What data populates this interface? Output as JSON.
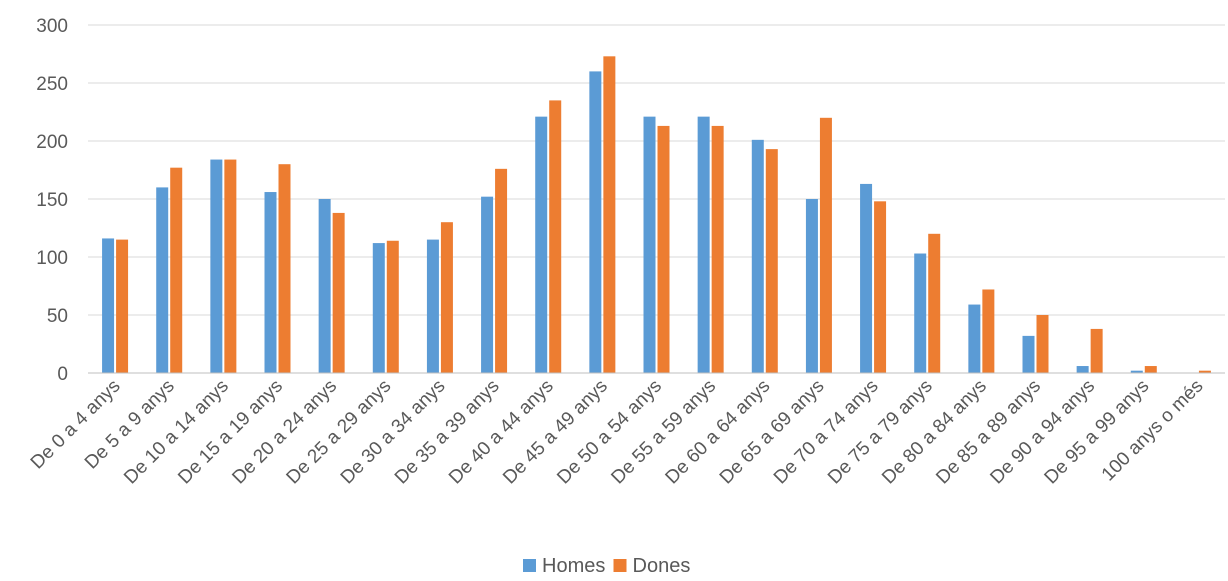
{
  "chart_data": {
    "type": "bar",
    "categories": [
      "De 0 a 4 anys",
      "De 5 a 9 anys",
      "De 10 a 14 anys",
      "De 15 a 19 anys",
      "De 20 a 24 anys",
      "De 25 a 29 anys",
      "De 30 a 34 anys",
      "De 35 a 39 anys",
      "De 40 a 44 anys",
      "De 45 a 49 anys",
      "De 50 a 54 anys",
      "De 55 a 59 anys",
      "De 60 a 64 anys",
      "De 65 a 69 anys",
      "De 70 a 74 anys",
      "De 75 a 79 anys",
      "De 80 a 84 anys",
      "De 85 a 89 anys",
      "De 90 a 94 anys",
      "De 95 a 99 anys",
      "100 anys o més"
    ],
    "series": [
      {
        "name": "Homes",
        "color": "#5b9bd5",
        "values": [
          116,
          160,
          184,
          156,
          150,
          112,
          115,
          152,
          221,
          260,
          221,
          221,
          201,
          150,
          163,
          103,
          59,
          32,
          6,
          2,
          0
        ]
      },
      {
        "name": "Dones",
        "color": "#ed7d31",
        "values": [
          115,
          177,
          184,
          180,
          138,
          114,
          130,
          176,
          235,
          273,
          213,
          213,
          193,
          220,
          148,
          120,
          72,
          50,
          38,
          6,
          2
        ]
      }
    ],
    "yticks": [
      0,
      50,
      100,
      150,
      200,
      250,
      300
    ],
    "ylim": [
      0,
      300
    ],
    "grid": true,
    "legend": "bottom-center",
    "title": "",
    "xlabel": "",
    "ylabel": ""
  }
}
